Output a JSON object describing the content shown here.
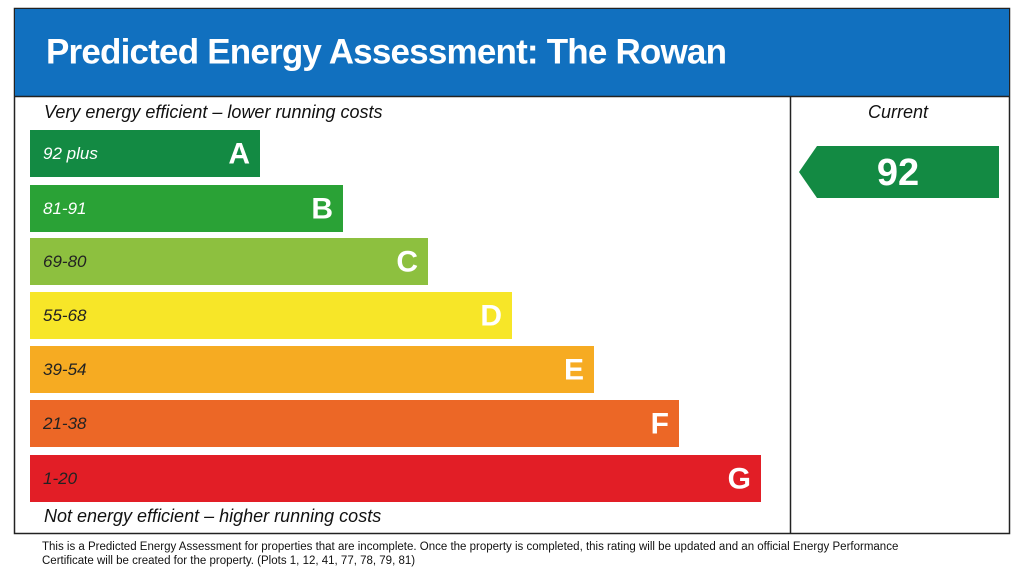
{
  "header": {
    "title": "Predicted Energy Assessment: The Rowan"
  },
  "top_label": "Very energy efficient – lower running costs",
  "bottom_label": "Not energy efficient – higher running costs",
  "bands": [
    {
      "range": "92 plus",
      "letter": "A",
      "color": "#138a43"
    },
    {
      "range": "81-91",
      "letter": "B",
      "color": "#2aa236"
    },
    {
      "range": "69-80",
      "letter": "C",
      "color": "#8dc03f"
    },
    {
      "range": "55-68",
      "letter": "D",
      "color": "#f7e628"
    },
    {
      "range": "39-54",
      "letter": "E",
      "color": "#f6ab22"
    },
    {
      "range": "21-38",
      "letter": "F",
      "color": "#ec6726"
    },
    {
      "range": "1-20",
      "letter": "G",
      "color": "#e21e26"
    }
  ],
  "current": {
    "label": "Current",
    "value": 92,
    "color": "#138a43"
  },
  "footnote": [
    "This is a Predicted Energy Assessment for properties that are incomplete. Once the property is completed, this rating will be updated and an official Energy Performance",
    "Certificate will be created for the property. (Plots 1, 12, 41, 77, 78, 79, 81)"
  ]
}
